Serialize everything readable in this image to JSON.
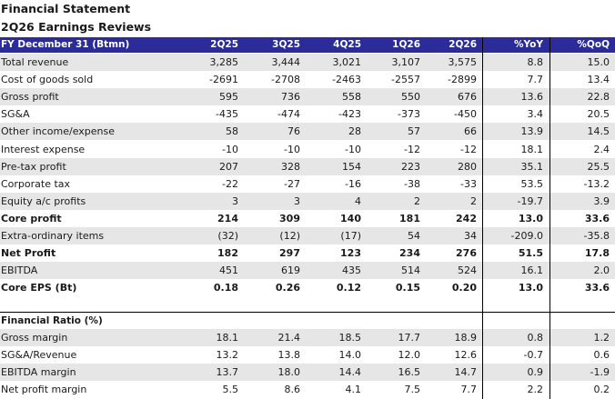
{
  "title": "Financial Statement",
  "subtitle": "2Q26 Earnings Reviews",
  "header": [
    "FY December 31 (Btmn)",
    "2Q25",
    "3Q25",
    "4Q25",
    "1Q26",
    "2Q26",
    "%YoY",
    "%QoQ"
  ],
  "statement_rows": [
    {
      "label": "Total revenue",
      "values": [
        "3,285",
        "3,444",
        "3,021",
        "3,107",
        "3,575",
        "8.8",
        "15.0"
      ],
      "shade": true,
      "bold": false
    },
    {
      "label": "Cost of goods sold",
      "values": [
        "-2691",
        "-2708",
        "-2463",
        "-2557",
        "-2899",
        "7.7",
        "13.4"
      ],
      "shade": false,
      "bold": false
    },
    {
      "label": "Gross profit",
      "values": [
        "595",
        "736",
        "558",
        "550",
        "676",
        "13.6",
        "22.8"
      ],
      "shade": true,
      "bold": false
    },
    {
      "label": "SG&A",
      "values": [
        "-435",
        "-474",
        "-423",
        "-373",
        "-450",
        "3.4",
        "20.5"
      ],
      "shade": false,
      "bold": false
    },
    {
      "label": "Other income/expense",
      "values": [
        "58",
        "76",
        "28",
        "57",
        "66",
        "13.9",
        "14.5"
      ],
      "shade": true,
      "bold": false
    },
    {
      "label": "Interest expense",
      "values": [
        "-10",
        "-10",
        "-10",
        "-12",
        "-12",
        "18.1",
        "2.4"
      ],
      "shade": false,
      "bold": false
    },
    {
      "label": "Pre-tax profit",
      "values": [
        "207",
        "328",
        "154",
        "223",
        "280",
        "35.1",
        "25.5"
      ],
      "shade": true,
      "bold": false
    },
    {
      "label": "Corporate tax",
      "values": [
        "-22",
        "-27",
        "-16",
        "-38",
        "-33",
        "53.5",
        "-13.2"
      ],
      "shade": false,
      "bold": false
    },
    {
      "label": "Equity a/c profits",
      "values": [
        "3",
        "3",
        "4",
        "2",
        "2",
        "-19.7",
        "3.9"
      ],
      "shade": true,
      "bold": false
    },
    {
      "label": "Core profit",
      "values": [
        "214",
        "309",
        "140",
        "181",
        "242",
        "13.0",
        "33.6"
      ],
      "shade": false,
      "bold": true
    },
    {
      "label": "Extra-ordinary items",
      "values": [
        "(32)",
        "(12)",
        "(17)",
        "54",
        "34",
        "-209.0",
        "-35.8"
      ],
      "shade": true,
      "bold": false
    },
    {
      "label": "Net Profit",
      "values": [
        "182",
        "297",
        "123",
        "234",
        "276",
        "51.5",
        "17.8"
      ],
      "shade": false,
      "bold": true
    },
    {
      "label": "EBITDA",
      "values": [
        "451",
        "619",
        "435",
        "514",
        "524",
        "16.1",
        "2.0"
      ],
      "shade": true,
      "bold": false
    },
    {
      "label": "Core EPS (Bt)",
      "values": [
        "0.18",
        "0.26",
        "0.12",
        "0.15",
        "0.20",
        "13.0",
        "33.6"
      ],
      "shade": false,
      "bold": true
    }
  ],
  "ratio_section_title": "Financial Ratio (%)",
  "ratio_rows": [
    {
      "label": "Gross margin",
      "values": [
        "18.1",
        "21.4",
        "18.5",
        "17.7",
        "18.9",
        "0.8",
        "1.2"
      ],
      "shade": true
    },
    {
      "label": "SG&A/Revenue",
      "values": [
        "13.2",
        "13.8",
        "14.0",
        "12.0",
        "12.6",
        "-0.7",
        "0.6"
      ],
      "shade": false
    },
    {
      "label": "EBITDA margin",
      "values": [
        "13.7",
        "18.0",
        "14.4",
        "16.5",
        "14.7",
        "0.9",
        "-1.9"
      ],
      "shade": true
    },
    {
      "label": "Net profit margin",
      "values": [
        "5.5",
        "8.6",
        "4.1",
        "7.5",
        "7.7",
        "2.2",
        "0.2"
      ],
      "shade": false
    }
  ],
  "colors": {
    "header_bg": "#2b2b9a",
    "shade": "#e6e6e6",
    "grid": "#000000"
  }
}
